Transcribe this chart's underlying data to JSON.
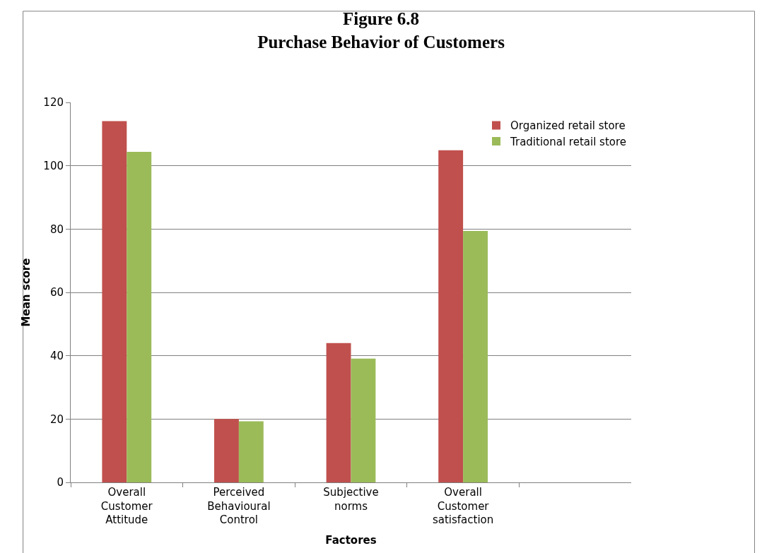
{
  "chart_data": {
    "type": "bar",
    "title": "Figure 6.8\nPurchase Behavior of Customers",
    "xlabel": "Factores",
    "ylabel": "Mean score",
    "categories": [
      "Overall Customer Attitude",
      "Perceived Behavioural Control",
      "Subjective norms",
      "Overall Customer satisfaction",
      null
    ],
    "series": [
      {
        "name": "Organized retail store",
        "color": "#c0504d",
        "values": [
          114.1,
          20.0,
          44.0,
          104.9,
          null
        ]
      },
      {
        "name": "Traditional retail store",
        "color": "#9bbb59",
        "values": [
          104.4,
          19.3,
          39.1,
          79.4,
          null
        ]
      }
    ],
    "ylim": [
      0,
      120
    ],
    "yticks": [
      0,
      20,
      40,
      60,
      80,
      100,
      120
    ],
    "grid": "y",
    "legend": "top right"
  }
}
